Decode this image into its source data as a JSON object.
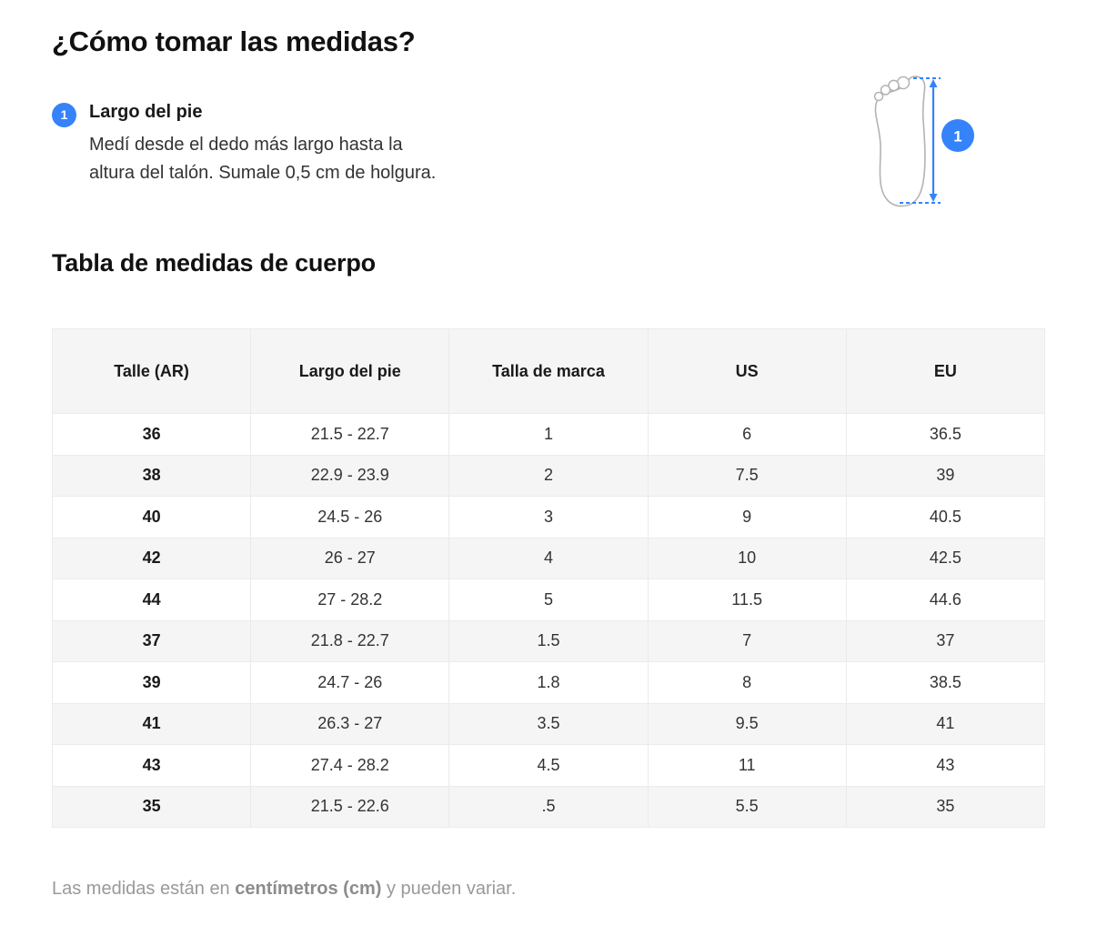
{
  "page": {
    "title": "¿Cómo tomar las medidas?"
  },
  "colors": {
    "accent": "#3483fa",
    "foot_outline": "#b3b3b3",
    "table_header_bg": "#f5f5f5",
    "row_alt_bg": "#f5f5f5"
  },
  "steps": [
    {
      "number": "1",
      "label": "Largo del pie",
      "description": [
        "Medí desde el dedo más largo hasta la",
        "altura del talón. Sumale 0,5 cm de holgura."
      ]
    }
  ],
  "diagram": {
    "badge": "1",
    "icon": "foot-sole-measurement"
  },
  "table_section": {
    "title": "Tabla de medidas de cuerpo",
    "columns": [
      "Talle (AR)",
      "Largo del pie",
      "Talla de marca",
      "US",
      "EU"
    ],
    "rows": [
      [
        "36",
        "21.5 - 22.7",
        "1",
        "6",
        "36.5"
      ],
      [
        "38",
        "22.9 - 23.9",
        "2",
        "7.5",
        "39"
      ],
      [
        "40",
        "24.5 - 26",
        "3",
        "9",
        "40.5"
      ],
      [
        "42",
        "26 - 27",
        "4",
        "10",
        "42.5"
      ],
      [
        "44",
        "27 - 28.2",
        "5",
        "11.5",
        "44.6"
      ],
      [
        "37",
        "21.8 - 22.7",
        "1.5",
        "7",
        "37"
      ],
      [
        "39",
        "24.7 - 26",
        "1.8",
        "8",
        "38.5"
      ],
      [
        "41",
        "26.3 - 27",
        "3.5",
        "9.5",
        "41"
      ],
      [
        "43",
        "27.4 - 28.2",
        "4.5",
        "11",
        "43"
      ],
      [
        "35",
        "21.5 - 22.6",
        ".5",
        "5.5",
        "35"
      ]
    ]
  },
  "footer": {
    "prefix": "Las medidas están en ",
    "bold": "centímetros (cm)",
    "suffix": " y pueden variar."
  }
}
